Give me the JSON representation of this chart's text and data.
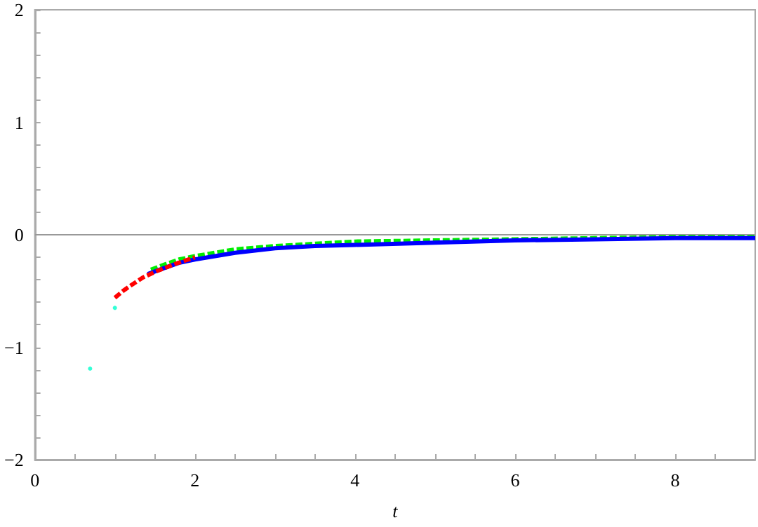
{
  "chart_data": {
    "type": "line",
    "xlabel": "t",
    "series": [
      {
        "color": "#ff0000",
        "line_style": "dashed",
        "x": [
          1,
          1.1,
          1.2,
          1.35,
          1.5,
          1.75,
          2
        ],
        "values": [
          -0.56,
          -0.5,
          -0.45,
          -0.38,
          -0.33,
          -0.26,
          -0.2
        ]
      },
      {
        "color": "#0000ff",
        "line_style": "solid",
        "x": [
          1.41,
          1.6,
          1.8,
          2,
          2.5,
          3,
          3.5,
          4,
          5,
          6,
          7,
          8,
          9
        ],
        "values": [
          -0.35,
          -0.3,
          -0.25,
          -0.22,
          -0.16,
          -0.12,
          -0.1,
          -0.09,
          -0.07,
          -0.05,
          -0.04,
          -0.03,
          -0.03
        ]
      },
      {
        "color": "#00ee00",
        "line_style": "dashed",
        "x": [
          1.45,
          1.6,
          1.8,
          2,
          2.5,
          3,
          3.5,
          4,
          5,
          6,
          7,
          8,
          9
        ],
        "values": [
          -0.31,
          -0.27,
          -0.22,
          -0.19,
          -0.13,
          -0.1,
          -0.08,
          -0.06,
          -0.05,
          -0.04,
          -0.03,
          -0.02,
          -0.02
        ]
      },
      {
        "type": "scatter",
        "color": "#00ffcc",
        "x": [
          0.69,
          1
        ],
        "values": [
          -1.19,
          -0.65
        ]
      }
    ],
    "xlim": [
      0,
      9
    ],
    "ylim": [
      -2,
      2
    ],
    "xticks": [
      0,
      {
        "value": 0.5,
        "label": null
      },
      {
        "value": 1,
        "label": null
      },
      {
        "value": 1.5,
        "label": null
      },
      2,
      {
        "value": 2.5,
        "label": null
      },
      {
        "value": 3,
        "label": null
      },
      {
        "value": 3.5,
        "label": null
      },
      4,
      {
        "value": 4.5,
        "label": null
      },
      {
        "value": 5,
        "label": null
      },
      {
        "value": 5.5,
        "label": null
      },
      6,
      {
        "value": 6.5,
        "label": null
      },
      {
        "value": 7,
        "label": null
      },
      {
        "value": 7.5,
        "label": null
      },
      8,
      {
        "value": 8.5,
        "label": null
      }
    ],
    "yticks": [
      -2,
      {
        "value": -1.8,
        "label": null
      },
      {
        "value": -1.6,
        "label": null
      },
      {
        "value": -1.4,
        "label": null
      },
      {
        "value": -1.2,
        "label": null
      },
      -1,
      {
        "value": -0.8,
        "label": null
      },
      {
        "value": -0.6,
        "label": null
      },
      {
        "value": -0.4,
        "label": null
      },
      {
        "value": -0.2,
        "label": null
      },
      0,
      {
        "value": 0.2,
        "label": null
      },
      {
        "value": 0.4,
        "label": null
      },
      {
        "value": 0.6,
        "label": null
      },
      {
        "value": 0.8,
        "label": null
      },
      1,
      {
        "value": 1.2,
        "label": null
      },
      {
        "value": 1.4,
        "label": null
      },
      {
        "value": 1.6,
        "label": null
      },
      {
        "value": 1.8,
        "label": null
      },
      2
    ],
    "ref_lines": [
      {
        "axis": "y",
        "value": 0,
        "color": "#999999"
      }
    ],
    "grid": false,
    "marker": "none"
  }
}
